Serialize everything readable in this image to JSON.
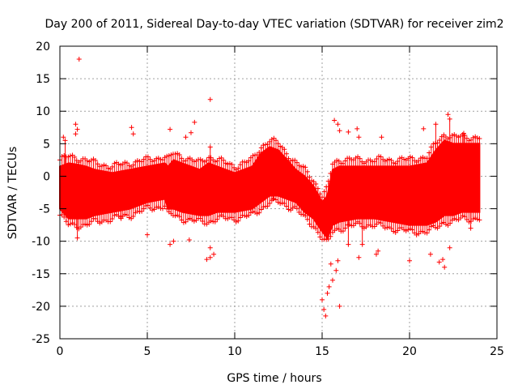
{
  "chart_data": {
    "type": "scatter",
    "title": "Day 200 of 2011, Sidereal Day-to-day VTEC variation (SDTVAR) for receiver zim2",
    "xlabel": "GPS time / hours",
    "ylabel": "SDTVAR / TECUs",
    "xlim": [
      0,
      25
    ],
    "ylim": [
      -25,
      20
    ],
    "xticks": [
      0,
      5,
      10,
      15,
      20,
      25
    ],
    "yticks": [
      -25,
      -20,
      -15,
      -10,
      -5,
      0,
      5,
      10,
      15,
      20
    ],
    "grid": true,
    "legend": "none",
    "marker": "+",
    "color": "#ff0000",
    "envelope": {
      "x": [
        0,
        0.5,
        1,
        1.5,
        2,
        3,
        4,
        5,
        6,
        6.2,
        6.5,
        7,
        8,
        8.5,
        9,
        10,
        11,
        11.5,
        12,
        12.5,
        13,
        13.5,
        14,
        14.5,
        15,
        15.3,
        15.6,
        16,
        17,
        18,
        19,
        20,
        21,
        21.5,
        22,
        22.5,
        23,
        24
      ],
      "upper": [
        1.5,
        2.0,
        1.8,
        1.5,
        1.0,
        0.5,
        1.0,
        1.5,
        2.0,
        1.5,
        2.5,
        2.0,
        1.0,
        2.0,
        1.5,
        0.5,
        1.5,
        3.5,
        4.5,
        4.0,
        2.5,
        1.0,
        0.0,
        -1.5,
        -4.0,
        -3.0,
        1.0,
        1.5,
        1.5,
        1.5,
        1.5,
        1.5,
        2.0,
        4.0,
        5.5,
        5.0,
        5.0,
        5.0
      ],
      "lower": [
        -5.0,
        -6.5,
        -6.5,
        -6.5,
        -6.0,
        -5.5,
        -5.0,
        -4.0,
        -3.5,
        -5.0,
        -5.0,
        -5.5,
        -6.0,
        -6.0,
        -5.5,
        -5.5,
        -5.0,
        -4.0,
        -3.0,
        -3.0,
        -3.5,
        -4.0,
        -5.5,
        -6.5,
        -8.5,
        -9.5,
        -7.5,
        -7.0,
        -6.5,
        -6.5,
        -7.0,
        -7.5,
        -7.5,
        -7.0,
        -6.0,
        -6.0,
        -5.5,
        -5.5
      ]
    },
    "outliers": [
      {
        "x": 1.1,
        "y": 18.0
      },
      {
        "x": 8.6,
        "y": 11.8
      },
      {
        "x": 0.9,
        "y": 8.0
      },
      {
        "x": 1.0,
        "y": 7.2
      },
      {
        "x": 0.9,
        "y": 6.5
      },
      {
        "x": 4.1,
        "y": 7.5
      },
      {
        "x": 4.2,
        "y": 6.5
      },
      {
        "x": 6.3,
        "y": 7.2
      },
      {
        "x": 7.2,
        "y": 6.0
      },
      {
        "x": 7.7,
        "y": 8.3
      },
      {
        "x": 7.5,
        "y": 6.7
      },
      {
        "x": 8.6,
        "y": 4.5
      },
      {
        "x": 15.7,
        "y": 8.6
      },
      {
        "x": 15.9,
        "y": 8.0
      },
      {
        "x": 16.0,
        "y": 7.0
      },
      {
        "x": 16.5,
        "y": 6.8
      },
      {
        "x": 17.0,
        "y": 7.3
      },
      {
        "x": 17.1,
        "y": 6.0
      },
      {
        "x": 18.4,
        "y": 6.0
      },
      {
        "x": 20.8,
        "y": 7.3
      },
      {
        "x": 21.5,
        "y": 8.0
      },
      {
        "x": 22.2,
        "y": 9.5
      },
      {
        "x": 22.3,
        "y": 8.8
      },
      {
        "x": 23.1,
        "y": 6.6
      },
      {
        "x": 0.3,
        "y": 5.5
      },
      {
        "x": 0.2,
        "y": 6.0
      },
      {
        "x": 5.0,
        "y": -9.0
      },
      {
        "x": 1.0,
        "y": -9.5
      },
      {
        "x": 6.3,
        "y": -10.5
      },
      {
        "x": 6.5,
        "y": -10.0
      },
      {
        "x": 7.4,
        "y": -9.8
      },
      {
        "x": 8.4,
        "y": -12.8
      },
      {
        "x": 8.6,
        "y": -12.5
      },
      {
        "x": 8.8,
        "y": -12.0
      },
      {
        "x": 8.6,
        "y": -11.0
      },
      {
        "x": 15.1,
        "y": -20.5
      },
      {
        "x": 15.2,
        "y": -21.5
      },
      {
        "x": 15.0,
        "y": -19.0
      },
      {
        "x": 15.3,
        "y": -18.0
      },
      {
        "x": 15.4,
        "y": -17.0
      },
      {
        "x": 15.6,
        "y": -16.0
      },
      {
        "x": 15.8,
        "y": -14.5
      },
      {
        "x": 15.5,
        "y": -13.5
      },
      {
        "x": 15.9,
        "y": -13.0
      },
      {
        "x": 16.0,
        "y": -20.0
      },
      {
        "x": 16.5,
        "y": -10.5
      },
      {
        "x": 17.1,
        "y": -12.5
      },
      {
        "x": 17.3,
        "y": -10.5
      },
      {
        "x": 18.1,
        "y": -12.0
      },
      {
        "x": 18.2,
        "y": -11.5
      },
      {
        "x": 20.0,
        "y": -13.0
      },
      {
        "x": 21.2,
        "y": -12.0
      },
      {
        "x": 21.7,
        "y": -13.2
      },
      {
        "x": 22.0,
        "y": -14.0
      },
      {
        "x": 21.9,
        "y": -12.8
      },
      {
        "x": 22.3,
        "y": -11.0
      },
      {
        "x": 23.5,
        "y": -8.0
      },
      {
        "x": 10.9,
        "y": -5.0
      },
      {
        "x": 12.2,
        "y": -3.5
      },
      {
        "x": 3.5,
        "y": -6.5
      }
    ]
  }
}
